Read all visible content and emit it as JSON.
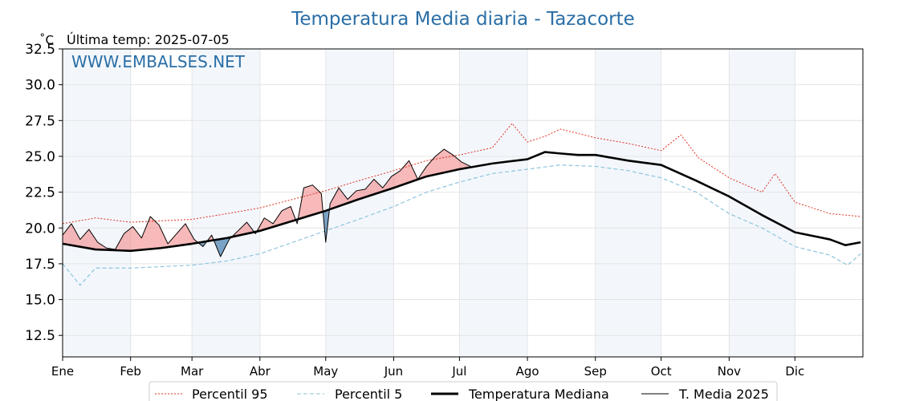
{
  "chart_data": {
    "type": "line",
    "title": "Temperatura Media diaria - Tazacorte",
    "unit_label": "˚C",
    "last_temp_label": "Última temp: 2025-07-05",
    "watermark": "WWW.EMBALSES.NET",
    "ylim": [
      11,
      32.5
    ],
    "y_ticks": [
      "32.5",
      "30.0",
      "27.5",
      "25.0",
      "22.5",
      "20.0",
      "17.5",
      "15.0",
      "12.5"
    ],
    "xlim": [
      0,
      365
    ],
    "months": [
      "Ene",
      "Feb",
      "Mar",
      "Abr",
      "May",
      "Jun",
      "Jul",
      "Ago",
      "Sep",
      "Oct",
      "Nov",
      "Dic"
    ],
    "month_start_days": [
      0,
      31,
      59,
      90,
      120,
      151,
      181,
      212,
      243,
      273,
      304,
      334
    ],
    "grid": true,
    "legend_position": "bottom-center",
    "series": [
      {
        "name": "Percentil 95",
        "color": "#e03020",
        "style": "dotted",
        "x": [
          0,
          15,
          31,
          45,
          59,
          75,
          90,
          105,
          120,
          135,
          151,
          166,
          181,
          196,
          205,
          212,
          220,
          227,
          243,
          258,
          273,
          282,
          290,
          304,
          319,
          325,
          334,
          350,
          364
        ],
        "y": [
          20.3,
          20.7,
          20.4,
          20.5,
          20.6,
          21.0,
          21.4,
          22.0,
          22.6,
          23.3,
          24.0,
          24.7,
          25.1,
          25.6,
          27.3,
          26.0,
          26.4,
          26.9,
          26.3,
          25.9,
          25.4,
          26.5,
          24.9,
          23.5,
          22.5,
          23.8,
          21.8,
          21.0,
          20.8
        ]
      },
      {
        "name": "Percentil 5",
        "color": "#8ec4dc",
        "style": "dashed",
        "x": [
          0,
          8,
          15,
          31,
          45,
          59,
          75,
          90,
          105,
          120,
          135,
          151,
          166,
          181,
          196,
          212,
          227,
          243,
          258,
          273,
          289,
          304,
          319,
          334,
          350,
          358,
          364
        ],
        "y": [
          17.5,
          16.0,
          17.2,
          17.2,
          17.3,
          17.4,
          17.7,
          18.2,
          19.0,
          19.8,
          20.6,
          21.5,
          22.5,
          23.2,
          23.8,
          24.1,
          24.4,
          24.3,
          24.0,
          23.5,
          22.5,
          21.0,
          20.0,
          18.7,
          18.1,
          17.4,
          18.2
        ]
      },
      {
        "name": "Temperatura Mediana",
        "color": "#000000",
        "style": "solid-thick",
        "x": [
          0,
          15,
          31,
          45,
          59,
          75,
          90,
          105,
          120,
          135,
          151,
          166,
          181,
          196,
          212,
          220,
          227,
          235,
          243,
          258,
          273,
          289,
          304,
          319,
          334,
          350,
          357,
          364
        ],
        "y": [
          18.9,
          18.5,
          18.4,
          18.6,
          18.9,
          19.3,
          19.8,
          20.5,
          21.2,
          22.0,
          22.8,
          23.6,
          24.1,
          24.5,
          24.8,
          25.3,
          25.2,
          25.1,
          25.1,
          24.7,
          24.4,
          23.3,
          22.2,
          20.9,
          19.7,
          19.2,
          18.8,
          19.0
        ]
      },
      {
        "name": "T. Media 2025",
        "color": "#000000",
        "style": "solid-thin",
        "x": [
          0,
          4,
          8,
          12,
          16,
          20,
          24,
          28,
          32,
          36,
          40,
          44,
          48,
          52,
          56,
          60,
          64,
          68,
          72,
          76,
          80,
          84,
          88,
          92,
          96,
          100,
          104,
          107,
          110,
          114,
          118,
          120,
          122,
          126,
          130,
          134,
          138,
          142,
          146,
          150,
          154,
          158,
          162,
          166,
          170,
          174,
          178,
          182,
          186
        ],
        "y": [
          19.5,
          20.3,
          19.2,
          19.9,
          19.0,
          18.6,
          18.5,
          19.6,
          20.1,
          19.3,
          20.8,
          20.2,
          18.9,
          19.6,
          20.3,
          19.2,
          18.7,
          19.5,
          18.0,
          19.2,
          19.8,
          20.4,
          19.6,
          20.7,
          20.3,
          21.2,
          21.5,
          20.3,
          22.8,
          23.0,
          22.4,
          19.0,
          21.7,
          22.8,
          22.0,
          22.6,
          22.7,
          23.4,
          22.8,
          23.6,
          24.0,
          24.7,
          23.4,
          24.3,
          25.0,
          25.5,
          25.1,
          24.6,
          24.3
        ]
      }
    ],
    "legend": [
      "Percentil 95",
      "Percentil 5",
      "Temperatura Mediana",
      "T. Media 2025"
    ]
  }
}
